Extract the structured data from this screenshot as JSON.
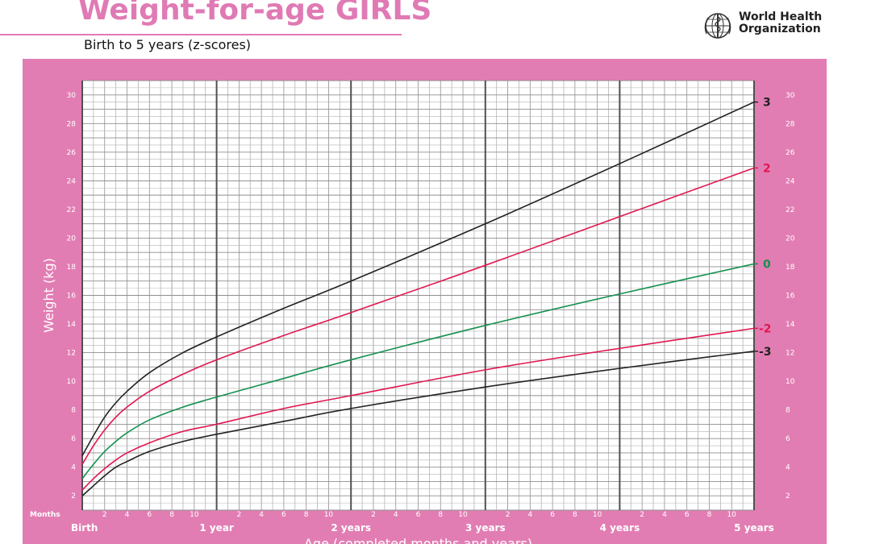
{
  "header": {
    "title": "Weight-for-age GIRLS",
    "subtitle": "Birth to 5 years (z-scores)",
    "org_line1": "World Health",
    "org_line2": "Organization",
    "logo_icon": "who-emblem-icon"
  },
  "colors": {
    "panel": "#e27db3",
    "accent": "#e07ab4",
    "grid_minor": "#b4b4b4",
    "grid_major": "#505050",
    "z3": "#222222",
    "z2": "#e0174f",
    "z0": "#159050"
  },
  "chart_data": {
    "type": "line",
    "title": "Weight-for-age GIRLS",
    "subtitle": "Birth to 5 years (z-scores)",
    "xlabel": "Age (completed months and years)",
    "ylabel": "Weight (kg)",
    "x_unit_label": "Months",
    "xlim": [
      0,
      60
    ],
    "ylim": [
      1,
      31
    ],
    "y_ticks": [
      2,
      4,
      6,
      8,
      10,
      12,
      14,
      16,
      18,
      20,
      22,
      24,
      26,
      28,
      30
    ],
    "x_minor_ticks": [
      "2",
      "4",
      "6",
      "8",
      "10"
    ],
    "x_major_labels": [
      "Birth",
      "1 year",
      "2 years",
      "3 years",
      "4 years",
      "5 years"
    ],
    "grid": true,
    "x": [
      0,
      1,
      2,
      3,
      4,
      6,
      9,
      12,
      18,
      24,
      36,
      48,
      60
    ],
    "series": [
      {
        "name": "3",
        "color": "#222222",
        "values": [
          4.8,
          6.2,
          7.5,
          8.5,
          9.3,
          10.6,
          12.0,
          13.1,
          15.1,
          17.0,
          21.0,
          25.2,
          29.5
        ]
      },
      {
        "name": "2",
        "color": "#e0174f",
        "values": [
          4.2,
          5.5,
          6.6,
          7.5,
          8.2,
          9.3,
          10.5,
          11.5,
          13.2,
          14.8,
          18.1,
          21.5,
          24.9
        ]
      },
      {
        "name": "0",
        "color": "#159050",
        "values": [
          3.2,
          4.2,
          5.1,
          5.8,
          6.4,
          7.3,
          8.2,
          8.9,
          10.2,
          11.5,
          13.9,
          16.1,
          18.2
        ]
      },
      {
        "name": "-2",
        "color": "#e0174f",
        "values": [
          2.4,
          3.2,
          3.9,
          4.5,
          5.0,
          5.7,
          6.5,
          7.0,
          8.1,
          9.0,
          10.8,
          12.3,
          13.7
        ]
      },
      {
        "name": "-3",
        "color": "#222222",
        "values": [
          2.0,
          2.7,
          3.4,
          4.0,
          4.4,
          5.1,
          5.8,
          6.3,
          7.2,
          8.1,
          9.6,
          10.9,
          12.1
        ]
      }
    ]
  }
}
